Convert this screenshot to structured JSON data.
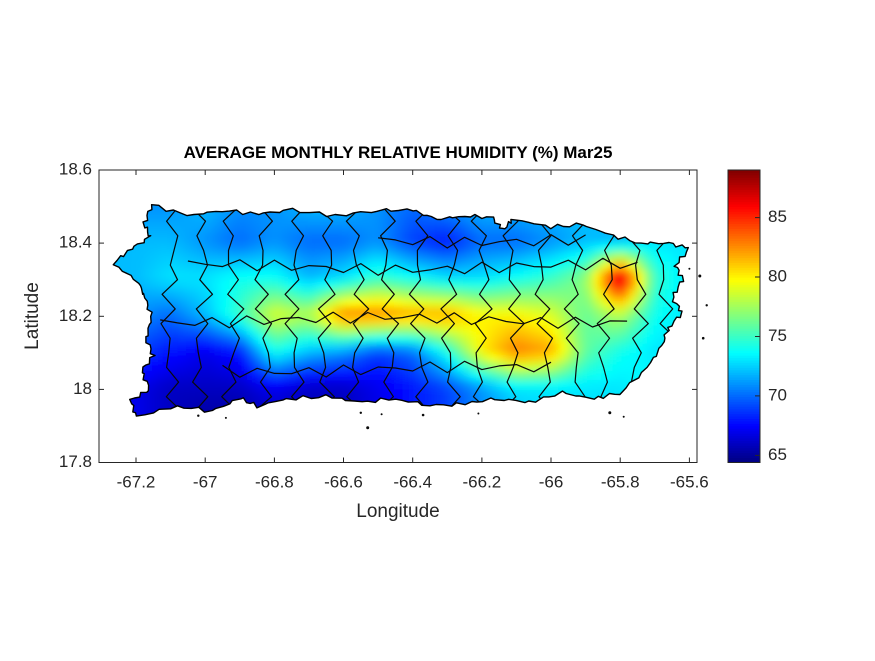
{
  "chart_data": {
    "type": "heatmap",
    "title": "AVERAGE MONTHLY RELATIVE HUMIDITY (%) Mar25",
    "xlabel": "Longitude",
    "ylabel": "Latitude",
    "xlim": [
      -67.307,
      -65.578
    ],
    "ylim": [
      17.8,
      18.6
    ],
    "xticks": [
      -67.2,
      -67.0,
      -66.8,
      -66.6,
      -66.4,
      -66.2,
      -66.0,
      -65.8,
      -65.6
    ],
    "xtick_labels": [
      "-67.2",
      "-67",
      "-66.8",
      "-66.6",
      "-66.4",
      "-66.2",
      "-66",
      "-65.8",
      "-65.6"
    ],
    "yticks": [
      17.8,
      18.0,
      18.2,
      18.4,
      18.6
    ],
    "ytick_labels": [
      "17.8",
      "18",
      "18.2",
      "18.4",
      "18.6"
    ],
    "grid_lines": false,
    "legend_position": "none",
    "colormap": "jet",
    "colorbar": {
      "position": "right",
      "vmin": 64.4,
      "vmax": 89.0,
      "ticks": [
        65,
        70,
        75,
        80,
        85
      ],
      "tick_labels": [
        "65",
        "70",
        "75",
        "80",
        "85"
      ]
    },
    "units": "%",
    "grid": {
      "lons": [
        -67.2,
        -67.1,
        -67.0,
        -66.9,
        -66.8,
        -66.7,
        -66.6,
        -66.5,
        -66.4,
        -66.3,
        -66.2,
        -66.1,
        -66.0,
        -65.9,
        -65.8,
        -65.7,
        -65.6
      ],
      "lats": [
        18.5,
        18.4,
        18.3,
        18.2,
        18.1,
        18.0,
        17.9
      ],
      "values": [
        [
          71,
          71,
          72,
          71,
          71,
          72,
          72,
          71,
          70,
          71,
          72,
          72,
          72,
          72,
          72,
          73,
          73
        ],
        [
          72,
          72,
          71,
          70,
          71,
          70,
          70,
          71,
          69,
          68,
          70,
          70,
          71,
          72,
          72,
          73,
          73
        ],
        [
          72,
          73,
          73,
          74,
          74,
          72,
          73,
          75,
          74,
          73,
          73,
          74,
          75,
          77,
          88,
          75,
          73
        ],
        [
          71,
          70,
          72,
          75,
          79,
          78,
          83,
          83,
          82,
          82,
          80,
          80,
          79,
          76,
          78,
          74,
          73
        ],
        [
          69,
          68,
          67,
          68,
          74,
          72,
          71,
          69,
          70,
          74,
          80,
          83,
          82,
          76,
          74,
          73,
          73
        ],
        [
          67,
          66,
          66,
          66,
          67,
          66,
          66,
          67,
          68,
          69,
          71,
          73,
          73,
          73,
          73,
          74,
          74
        ],
        [
          67,
          66,
          65,
          65,
          66,
          66,
          66,
          67,
          68,
          69,
          71,
          72,
          73,
          73,
          73,
          74,
          74
        ]
      ]
    }
  }
}
